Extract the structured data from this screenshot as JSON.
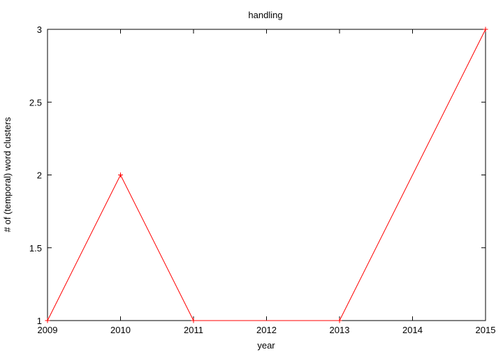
{
  "chart_data": {
    "type": "line",
    "title": "handling",
    "xlabel": "year",
    "ylabel": "# of (temporal) word clusters",
    "x": [
      2009,
      2010,
      2011,
      2013,
      2015
    ],
    "series": [
      {
        "values": [
          1,
          2,
          1,
          1,
          3
        ],
        "color": "#ff0000",
        "marker": "plus"
      }
    ],
    "xlim": [
      2009,
      2015
    ],
    "ylim": [
      1,
      3
    ],
    "xticks": [
      "2009",
      "2010",
      "2011",
      "2012",
      "2013",
      "2014",
      "2015"
    ],
    "yticks": [
      "1",
      "1.5",
      "2",
      "2.5",
      "3"
    ],
    "grid": false,
    "legend": "none"
  }
}
